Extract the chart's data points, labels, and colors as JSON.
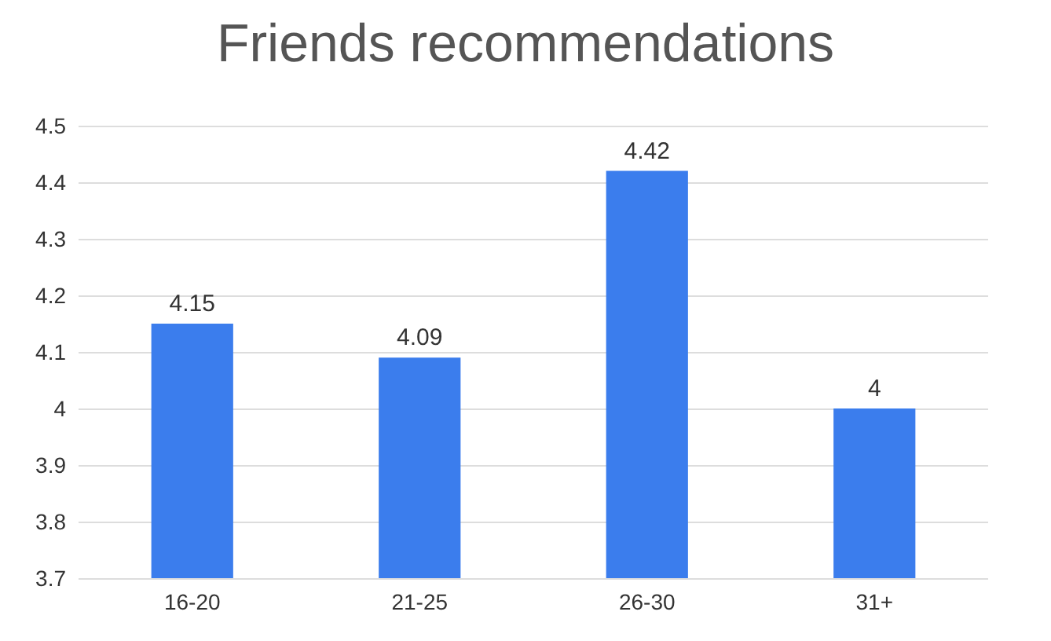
{
  "chart_data": {
    "type": "bar",
    "title": "Friends recommendations",
    "categories": [
      "16-20",
      "21-25",
      "26-30",
      "31+"
    ],
    "values": [
      4.15,
      4.09,
      4.42,
      4
    ],
    "color": "#3b7ded",
    "ylim": [
      3.7,
      4.5
    ],
    "yticks": [
      3.7,
      3.8,
      3.9,
      4,
      4.1,
      4.2,
      4.3,
      4.4,
      4.5
    ],
    "grid": "y",
    "data_labels": true
  }
}
